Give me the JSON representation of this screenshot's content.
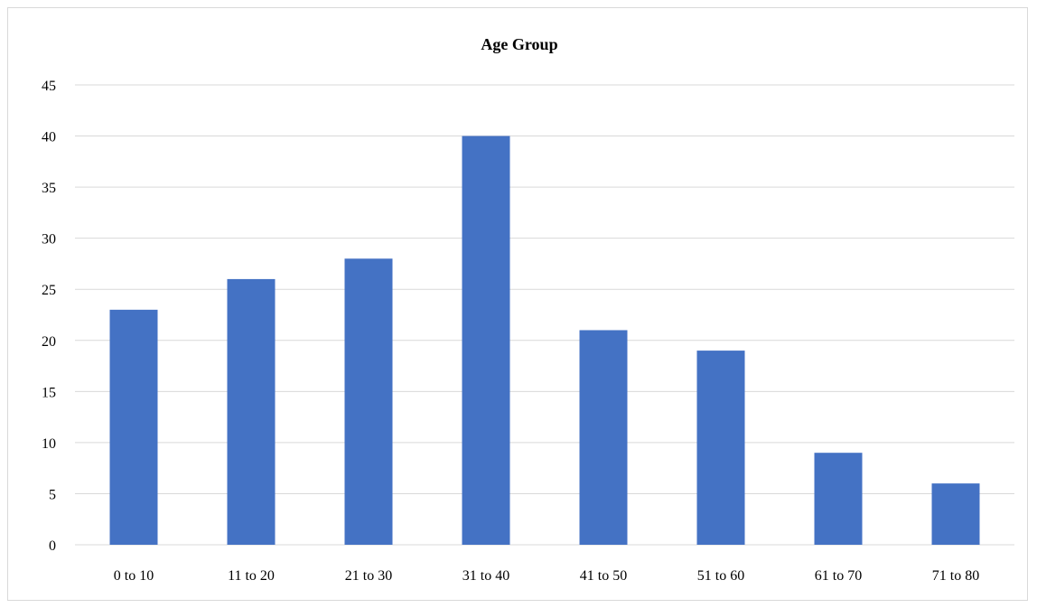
{
  "chart_data": {
    "type": "bar",
    "title": "Age Group",
    "xlabel": "",
    "ylabel": "",
    "categories": [
      "0 to 10",
      "11 to 20",
      "21 to 30",
      "31 to 40",
      "41 to 50",
      "51 to 60",
      "61 to 70",
      "71 to 80"
    ],
    "values": [
      23,
      26,
      28,
      40,
      21,
      19,
      9,
      6
    ],
    "ylim": [
      0,
      45
    ],
    "yticks": [
      0,
      5,
      10,
      15,
      20,
      25,
      30,
      35,
      40,
      45
    ],
    "grid": true,
    "legend": "none",
    "colors": {
      "bar": "#4472c4",
      "grid": "#d9d9d9",
      "axis": "#d9d9d9"
    }
  }
}
